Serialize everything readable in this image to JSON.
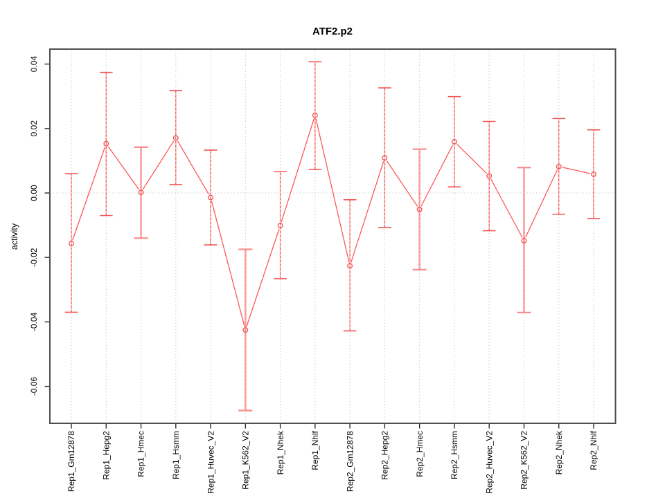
{
  "chart_data": {
    "type": "line",
    "title": "ATF2.p2",
    "xlabel": "",
    "ylabel": "activity",
    "categories": [
      "Rep1_Gm12878",
      "Rep1_Hepg2",
      "Rep1_Hmec",
      "Rep1_Hsmm",
      "Rep1_Huvec_V2",
      "Rep1_K562_V2",
      "Rep1_Nhek",
      "Rep1_Nhlf",
      "Rep2_Gm12878",
      "Rep2_Hepg2",
      "Rep2_Hmec",
      "Rep2_Hsmm",
      "Rep2_Huvec_V2",
      "Rep2_K562_V2",
      "Rep2_Nhek",
      "Rep2_Nhlf"
    ],
    "series": [
      {
        "name": "activity",
        "values": [
          -0.0157,
          0.0153,
          0.0002,
          0.0171,
          -0.0014,
          -0.0425,
          -0.0101,
          0.0241,
          -0.0226,
          0.0109,
          -0.0051,
          0.0159,
          0.0053,
          -0.0148,
          0.0082,
          0.0058
        ],
        "ci_low": [
          -0.037,
          -0.007,
          -0.014,
          0.0026,
          -0.0161,
          -0.0675,
          -0.0266,
          0.0073,
          -0.0428,
          -0.0107,
          -0.0238,
          0.0019,
          -0.0117,
          -0.0371,
          -0.0066,
          -0.0079
        ],
        "ci_high": [
          0.006,
          0.0374,
          0.0142,
          0.0318,
          0.0133,
          -0.0175,
          0.0066,
          0.0407,
          -0.0021,
          0.0326,
          0.0136,
          0.0299,
          0.0222,
          0.0079,
          0.0231,
          0.0196
        ]
      }
    ],
    "emphasized_bars": [
      false,
      false,
      true,
      false,
      false,
      true,
      false,
      false,
      false,
      false,
      true,
      false,
      false,
      true,
      false,
      false
    ],
    "emphasized_categories": [
      "Rep1_Hmec",
      "Rep1_K562_V2",
      "Rep2_Hmec",
      "Rep2_K562_V2"
    ],
    "ylim": [
      -0.0715,
      0.0446
    ],
    "yticks": [
      0.04,
      0.02,
      0.0,
      -0.02,
      -0.04,
      -0.06
    ],
    "ytick_labels": [
      "0.04",
      "0.02",
      "0.00",
      "-0.02",
      "-0.04",
      "-0.06"
    ],
    "grid": {
      "vertical": "dotted line at each category",
      "horizontal": "dotted line at 0.00"
    },
    "legend": "none",
    "marker": "open-circle",
    "colors": {
      "series_line": "#ff5050",
      "marker_stroke": "#ee4c4c",
      "error_bar_pink": "#ffb5b5",
      "error_bar_pink_thick": "#ffabab",
      "error_bar_dash": "#ee4c4c",
      "error_bar_dash_thick": "#f98989",
      "cap": "#f15555",
      "cap_thick": "#f88f8f",
      "grid_gray": "#c9c9c9",
      "border_gray": "#4d4d4d",
      "tick_black": "#2a2a2a",
      "background": "#ffffff"
    }
  }
}
